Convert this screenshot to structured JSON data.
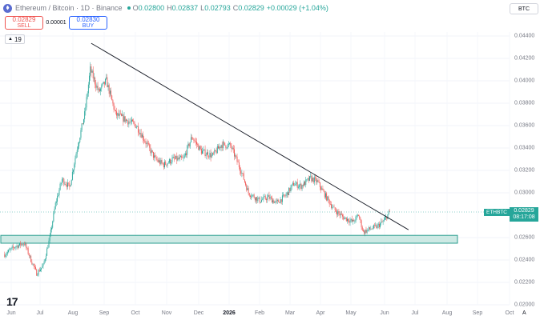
{
  "header": {
    "symbol_title": "Ethereum / Bitcoin · 1D · Binance",
    "ohlc": {
      "o_label": "O",
      "o_value": "0.02800",
      "h_label": "H",
      "h_value": "0.02837",
      "l_label": "L",
      "l_value": "0.02793",
      "c_label": "C",
      "c_value": "0.02829",
      "change": "+0.00029 (+1.04%)"
    },
    "currency": "BTC"
  },
  "trade": {
    "sell_price": "0.02829",
    "sell_label": "SELL",
    "spread": "0.00001",
    "buy_price": "0.02830",
    "buy_label": "BUY"
  },
  "indicators": {
    "count": "19"
  },
  "price_scale": {
    "labels": [
      "0.04400",
      "0.04200",
      "0.04000",
      "0.03800",
      "0.03600",
      "0.03400",
      "0.03200",
      "0.03000",
      "0.02600",
      "0.02400",
      "0.02200",
      "0.02000"
    ],
    "current_symbol": "ETHBTC",
    "current_price": "0.02829",
    "countdown": "08:17:08"
  },
  "time_scale": {
    "labels": [
      "Jun",
      "Jul",
      "Aug",
      "Sep",
      "Oct",
      "Nov",
      "Dec",
      "2026",
      "Feb",
      "Mar",
      "Apr",
      "May",
      "Jun",
      "Jul",
      "Aug",
      "Sep",
      "Oct"
    ],
    "auto_label": "A"
  },
  "colors": {
    "up": "#26a69a",
    "down": "#ef5350",
    "zone_fill": "#cde9e4",
    "zone_border": "#2a9d8f",
    "trendline": "#131722"
  },
  "chart_data": {
    "type": "candlestick",
    "interval": "1D",
    "y_unit": "BTC",
    "ylim": [
      0.02,
      0.0445
    ],
    "grid": true,
    "support_zone": [
      0.0255,
      0.0262
    ],
    "trendline": {
      "from": {
        "date": "2025-08-25",
        "price": 0.04335
      },
      "to": {
        "date": "2026-07-28",
        "price": 0.0267
      }
    },
    "path": [
      [
        "2025-05-25",
        0.0245
      ],
      [
        "2025-06-05",
        0.0252
      ],
      [
        "2025-06-15",
        0.0255
      ],
      [
        "2025-06-22",
        0.024
      ],
      [
        "2025-06-28",
        0.0228
      ],
      [
        "2025-07-05",
        0.0235
      ],
      [
        "2025-07-12",
        0.026
      ],
      [
        "2025-07-18",
        0.029
      ],
      [
        "2025-07-25",
        0.0312
      ],
      [
        "2025-08-02",
        0.0305
      ],
      [
        "2025-08-10",
        0.034
      ],
      [
        "2025-08-18",
        0.037
      ],
      [
        "2025-08-24",
        0.041
      ],
      [
        "2025-09-02",
        0.039
      ],
      [
        "2025-09-10",
        0.04
      ],
      [
        "2025-09-20",
        0.037
      ],
      [
        "2025-10-01",
        0.0365
      ],
      [
        "2025-10-12",
        0.036
      ],
      [
        "2025-10-22",
        0.0345
      ],
      [
        "2025-11-01",
        0.033
      ],
      [
        "2025-11-10",
        0.0325
      ],
      [
        "2025-11-20",
        0.033
      ],
      [
        "2025-12-01",
        0.033
      ],
      [
        "2025-12-10",
        0.035
      ],
      [
        "2025-12-20",
        0.0337
      ],
      [
        "2026-01-01",
        0.0333
      ],
      [
        "2026-01-10",
        0.0343
      ],
      [
        "2026-01-20",
        0.0342
      ],
      [
        "2026-01-31",
        0.032
      ],
      [
        "2026-02-08",
        0.03
      ],
      [
        "2026-02-20",
        0.0293
      ],
      [
        "2026-03-01",
        0.0296
      ],
      [
        "2026-03-10",
        0.0291
      ],
      [
        "2026-03-20",
        0.0298
      ],
      [
        "2026-03-28",
        0.0308
      ],
      [
        "2026-04-05",
        0.0306
      ],
      [
        "2026-04-15",
        0.0313
      ],
      [
        "2026-04-22",
        0.031
      ],
      [
        "2026-05-01",
        0.0297
      ],
      [
        "2026-05-10",
        0.0285
      ],
      [
        "2026-05-20",
        0.0278
      ],
      [
        "2026-05-30",
        0.0274
      ],
      [
        "2026-06-05",
        0.028
      ],
      [
        "2026-06-10",
        0.0265
      ],
      [
        "2026-06-18",
        0.0268
      ],
      [
        "2026-06-25",
        0.027
      ],
      [
        "2026-07-02",
        0.0275
      ],
      [
        "2026-07-08",
        0.0283
      ]
    ]
  }
}
